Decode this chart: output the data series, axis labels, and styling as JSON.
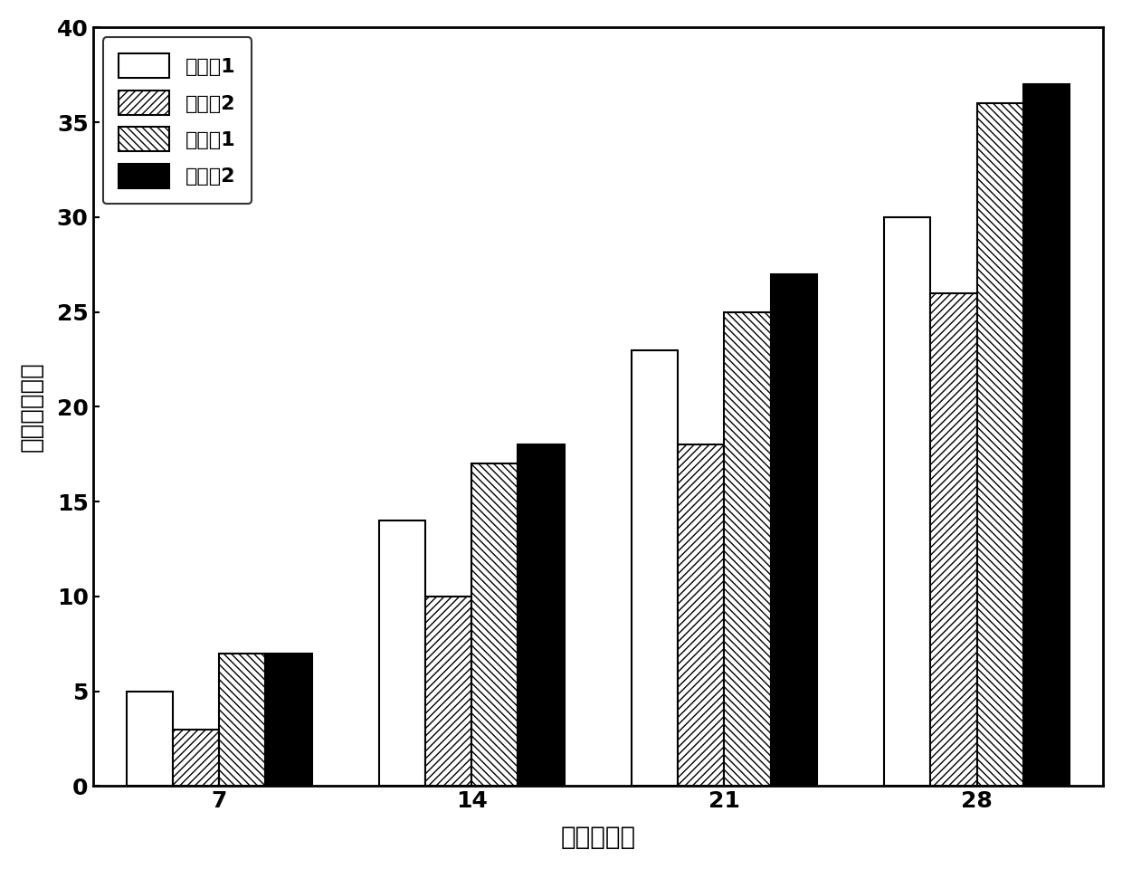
{
  "categories": [
    7,
    14,
    21,
    28
  ],
  "series": [
    {
      "label": "对比例1",
      "values": [
        5,
        14,
        23,
        30
      ],
      "facecolor": "white",
      "edgecolor": "black",
      "hatch": ""
    },
    {
      "label": "对比例2",
      "values": [
        3,
        10,
        18,
        26
      ],
      "facecolor": "white",
      "edgecolor": "black",
      "hatch": "////"
    },
    {
      "label": "实施例1",
      "values": [
        7,
        17,
        25,
        36
      ],
      "facecolor": "white",
      "edgecolor": "black",
      "hatch": "\\\\\\\\"
    },
    {
      "label": "实施例2",
      "values": [
        7,
        18,
        27,
        37
      ],
      "facecolor": "black",
      "edgecolor": "black",
      "hatch": ""
    }
  ],
  "xlabel": "时间（天）",
  "ylabel": "叶片数（个）",
  "ylim": [
    0,
    40
  ],
  "yticks": [
    0,
    5,
    10,
    15,
    20,
    25,
    30,
    35,
    40
  ],
  "bar_width": 0.55,
  "group_positions": [
    1.5,
    4.5,
    7.5,
    10.5
  ],
  "axis_fontsize": 20,
  "tick_fontsize": 18,
  "legend_fontsize": 16
}
